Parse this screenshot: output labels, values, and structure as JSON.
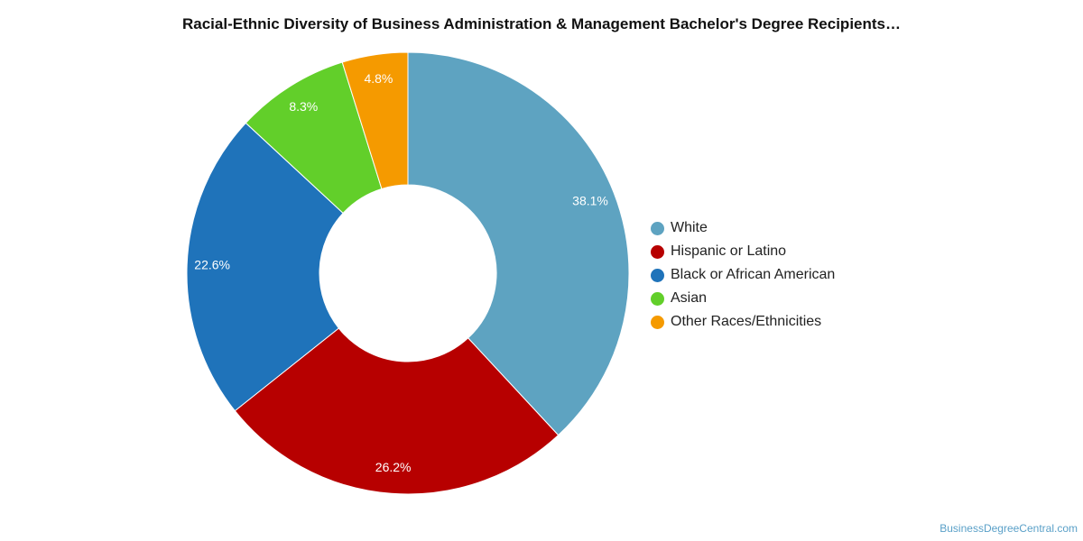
{
  "chart_data": {
    "type": "pie",
    "title": "Racial-Ethnic Diversity of Business Administration & Management Bachelor's Degree Recipients…",
    "categories": [
      "White",
      "Hispanic or Latino",
      "Black or African American",
      "Asian",
      "Other Races/Ethnicities"
    ],
    "values": [
      38.1,
      26.2,
      22.6,
      8.3,
      4.8
    ],
    "value_labels": [
      "38.1%",
      "26.2%",
      "22.6%",
      "8.3%",
      "4.8%"
    ],
    "colors": [
      "#5ea3c1",
      "#b70000",
      "#1f73ba",
      "#62cf2a",
      "#f59a00"
    ],
    "style": "donut",
    "legend_position": "right"
  },
  "footer": {
    "source": "BusinessDegreeCentral.com"
  }
}
